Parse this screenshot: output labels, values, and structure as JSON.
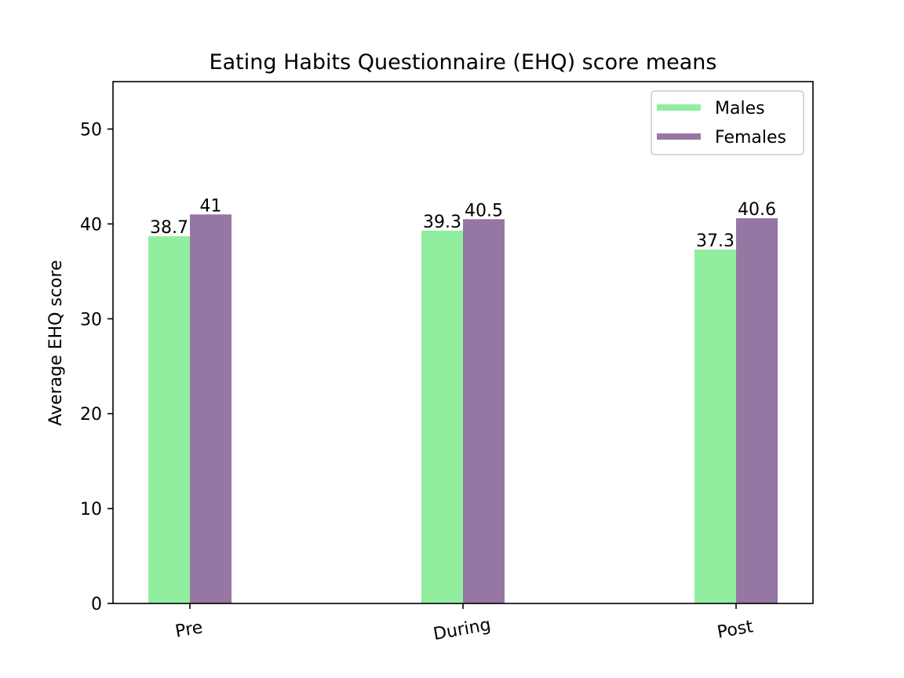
{
  "chart_data": {
    "type": "bar",
    "title": "Eating Habits Questionnaire (EHQ) score means",
    "xlabel": "",
    "ylabel": "Average EHQ score",
    "categories": [
      "Pre",
      "During",
      "Post"
    ],
    "series": [
      {
        "name": "Males",
        "values": [
          38.7,
          39.3,
          37.3
        ],
        "labels": [
          "38.7",
          "39.3",
          "37.3"
        ],
        "color": "#90ee9e"
      },
      {
        "name": "Females",
        "values": [
          41,
          40.5,
          40.6
        ],
        "labels": [
          "41",
          "40.5",
          "40.6"
        ],
        "color": "#9676a3"
      }
    ],
    "ylim": [
      0,
      55
    ],
    "yticks": [
      "0",
      "10",
      "20",
      "30",
      "40",
      "50"
    ],
    "ytick_values": [
      0,
      10,
      20,
      30,
      40,
      50
    ],
    "grid": false,
    "legend": "top-right"
  }
}
